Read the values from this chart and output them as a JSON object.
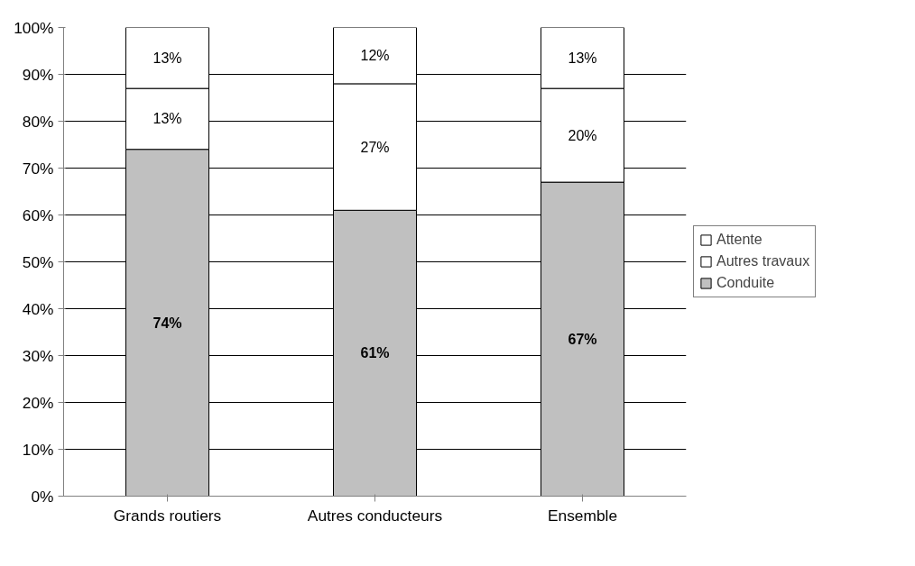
{
  "chart_data": {
    "type": "bar",
    "stacked": true,
    "categories": [
      "Grands routiers",
      "Autres conducteurs",
      "Ensemble"
    ],
    "series": [
      {
        "name": "Conduite",
        "color": "#c0c0c0",
        "values": [
          74,
          61,
          67
        ],
        "value_labels": [
          "74%",
          "61%",
          "67%"
        ]
      },
      {
        "name": "Autres travaux",
        "color": "#ffffff",
        "values": [
          13,
          27,
          20
        ],
        "value_labels": [
          "13%",
          "27%",
          "20%"
        ]
      },
      {
        "name": "Attente",
        "color": "#ffffff",
        "values": [
          13,
          12,
          13
        ],
        "value_labels": [
          "13%",
          "12%",
          "13%"
        ]
      }
    ],
    "ylim": [
      0,
      100
    ],
    "yticks": [
      {
        "value": 0,
        "label": "0%"
      },
      {
        "value": 10,
        "label": "10%"
      },
      {
        "value": 20,
        "label": "20%"
      },
      {
        "value": 30,
        "label": "30%"
      },
      {
        "value": 40,
        "label": "40%"
      },
      {
        "value": 50,
        "label": "50%"
      },
      {
        "value": 60,
        "label": "60%"
      },
      {
        "value": 70,
        "label": "70%"
      },
      {
        "value": 80,
        "label": "80%"
      },
      {
        "value": 90,
        "label": "90%"
      },
      {
        "value": 100,
        "label": "100%"
      }
    ],
    "grid": "y",
    "legend": "right"
  }
}
